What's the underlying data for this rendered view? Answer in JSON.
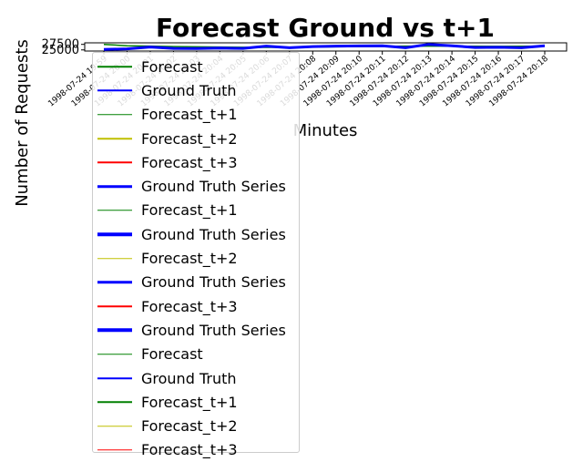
{
  "chart_data": {
    "type": "line",
    "title": "Forecast Ground vs t+1",
    "xlabel": "Minutes",
    "ylabel": "Number of Requests",
    "ylim": [
      24500,
      28200
    ],
    "yticks": [
      25000,
      27500
    ],
    "ytick_labels": [
      "25000",
      "27500"
    ],
    "categories": [
      "1998-07-24 19:59",
      "1998-07-24 20:00",
      "1998-07-24 20:01",
      "1998-07-24 20:02",
      "1998-07-24 20:03",
      "1998-07-24 20:04",
      "1998-07-24 20:05",
      "1998-07-24 20:06",
      "1998-07-24 20:07",
      "1998-07-24 20:08",
      "1998-07-24 20:09",
      "1998-07-24 20:10",
      "1998-07-24 20:11",
      "1998-07-24 20:12",
      "1998-07-24 20:13",
      "1998-07-24 20:14",
      "1998-07-24 20:15",
      "1998-07-24 20:16",
      "1998-07-24 20:17",
      "1998-07-24 20:18"
    ],
    "grid": false,
    "legend_position": "upper-left",
    "series": [
      {
        "name": "Forecast_t+1",
        "color": "#008000",
        "width": 1.5,
        "values": [
          27500,
          26900,
          26700,
          26500,
          26400,
          26300,
          26200,
          26150,
          26200,
          26300,
          26400,
          26500,
          26600,
          26700,
          26700,
          26700,
          26650,
          26600,
          26650,
          26700
        ]
      },
      {
        "name": "Ground Truth",
        "color": "#0000ff",
        "width": 3,
        "values": [
          25200,
          25500,
          26300,
          25700,
          25600,
          25800,
          25700,
          26700,
          26000,
          26500,
          26700,
          26800,
          26900,
          26000,
          27500,
          26900,
          26100,
          26200,
          26000,
          26900
        ]
      }
    ],
    "legend": [
      {
        "label": "Forecast",
        "color": "#008000",
        "width": 1.5
      },
      {
        "label": "Ground Truth",
        "color": "#0000ff",
        "width": 1.5
      },
      {
        "label": "Forecast_t+1",
        "color": "#008000",
        "width": 1.5
      },
      {
        "label": "Forecast_t+2",
        "color": "#bfbf00",
        "width": 1.5
      },
      {
        "label": "Forecast_t+3",
        "color": "#ff0000",
        "width": 1.5
      },
      {
        "label": "Ground Truth Series",
        "color": "#0000ff",
        "width": 3.5
      },
      {
        "label": "Forecast_t+1",
        "color": "#008000",
        "width": 1.5
      },
      {
        "label": "Ground Truth Series",
        "color": "#0000ff",
        "width": 3.5
      },
      {
        "label": "Forecast_t+2",
        "color": "#bfbf00",
        "width": 1.5
      },
      {
        "label": "Ground Truth Series",
        "color": "#0000ff",
        "width": 3.5
      },
      {
        "label": "Forecast_t+3",
        "color": "#ff0000",
        "width": 1.5
      },
      {
        "label": "Ground Truth Series",
        "color": "#0000ff",
        "width": 3.5
      },
      {
        "label": "Forecast",
        "color": "#008000",
        "width": 1.5
      },
      {
        "label": "Ground Truth",
        "color": "#0000ff",
        "width": 1.5
      },
      {
        "label": "Forecast_t+1",
        "color": "#008000",
        "width": 1.5
      },
      {
        "label": "Forecast_t+2",
        "color": "#bfbf00",
        "width": 1.5
      },
      {
        "label": "Forecast_t+3",
        "color": "#ff0000",
        "width": 1.5
      }
    ]
  }
}
